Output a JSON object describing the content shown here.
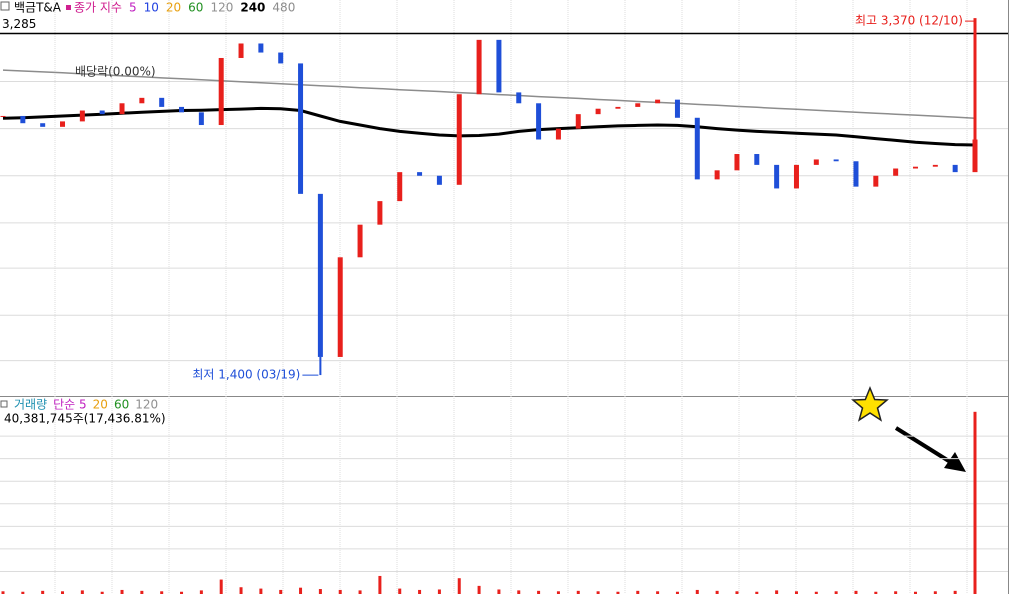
{
  "chart_data": [
    {
      "type": "candlestick",
      "title": "백금T&A",
      "ylim": [
        1290,
        3470
      ],
      "yticks": [
        1480,
        1730,
        1990,
        2240,
        2500,
        2760,
        3020
      ],
      "grid": true,
      "series": [
        {
          "name": "종가 지수",
          "color": "#d02090",
          "up_color": "#e8201c",
          "down_color": "#1f4fd8",
          "values": [
            2830,
            2790,
            2770,
            2800,
            2860,
            2840,
            2900,
            2930,
            2880,
            2850,
            2780,
            3150,
            3230,
            3180,
            3120,
            2400,
            1500,
            2050,
            2230,
            2360,
            2520,
            2500,
            2450,
            2950,
            3250,
            2960,
            2900,
            2700,
            2760,
            2840,
            2870,
            2880,
            2900,
            2920,
            2820,
            2480,
            2530,
            2620,
            2560,
            2430,
            2560,
            2590,
            2580,
            2440,
            2500,
            2540,
            2550,
            2560,
            2520,
            2700
          ]
        },
        {
          "name": "240",
          "color": "#000000",
          "values": [
            2817,
            2820,
            2825,
            2830,
            2835,
            2840,
            2845,
            2850,
            2855,
            2860,
            2862,
            2865,
            2868,
            2872,
            2870,
            2860,
            2830,
            2800,
            2780,
            2760,
            2745,
            2735,
            2725,
            2720,
            2722,
            2730,
            2745,
            2755,
            2760,
            2765,
            2770,
            2775,
            2778,
            2780,
            2778,
            2770,
            2760,
            2752,
            2745,
            2740,
            2735,
            2730,
            2725,
            2715,
            2705,
            2695,
            2685,
            2678,
            2672,
            2670
          ]
        },
        {
          "name": "480",
          "color": "#8c8c8c",
          "values": [
            3083,
            3078,
            3073,
            3068,
            3062,
            3057,
            3051,
            3046,
            3040,
            3035,
            3030,
            3024,
            3019,
            3013,
            3008,
            3002,
            2997,
            2992,
            2986,
            2981,
            2975,
            2970,
            2965,
            2959,
            2954,
            2948,
            2943,
            2937,
            2932,
            2927,
            2921,
            2916,
            2910,
            2905,
            2900,
            2894,
            2889,
            2883,
            2878,
            2872,
            2867,
            2862,
            2856,
            2851,
            2845,
            2840,
            2835,
            2829,
            2824,
            2817
          ]
        }
      ],
      "ma_labels": [
        {
          "label": "5",
          "color": "#c020c0"
        },
        {
          "label": "10",
          "color": "#2040e0"
        },
        {
          "label": "20",
          "color": "#e8a010"
        },
        {
          "label": "60",
          "color": "#209020"
        },
        {
          "label": "120",
          "color": "#909090"
        }
      ],
      "reference": {
        "label": "3,285",
        "value": 3285
      },
      "note": "배당락(0.00%)",
      "high": {
        "label": "최고 3,370 (12/10)",
        "value": 3370
      },
      "low": {
        "label": "최저 1,400 (03/19)",
        "value": 1400
      }
    },
    {
      "type": "bar",
      "ylim": [
        0,
        43000000
      ],
      "yticks": [
        5000000,
        10000000,
        15000000,
        20000000,
        25000000,
        30000000,
        35000000
      ],
      "grid": true,
      "series": [
        {
          "name": "거래량",
          "color": "#e8201c",
          "values": [
            600000,
            500000,
            700000,
            600000,
            800000,
            500000,
            900000,
            700000,
            600000,
            500000,
            800000,
            3200000,
            1500000,
            1200000,
            900000,
            1400000,
            1100000,
            900000,
            800000,
            4000000,
            1200000,
            900000,
            1000000,
            3500000,
            1800000,
            1000000,
            800000,
            700000,
            600000,
            700000,
            600000,
            500000,
            700000,
            600000,
            500000,
            900000,
            700000,
            600000,
            500000,
            800000,
            600000,
            500000,
            600000,
            700000,
            500000,
            600000,
            500000,
            600000,
            700000,
            40381745
          ]
        }
      ],
      "ma_labels": [
        {
          "label": "단순 5",
          "color": "#c020c0"
        },
        {
          "label": "20",
          "color": "#e8a010"
        },
        {
          "label": "60",
          "color": "#209020"
        },
        {
          "label": "120",
          "color": "#909090"
        }
      ],
      "volume_label": "40,381,745주(17,436.81%)"
    }
  ]
}
